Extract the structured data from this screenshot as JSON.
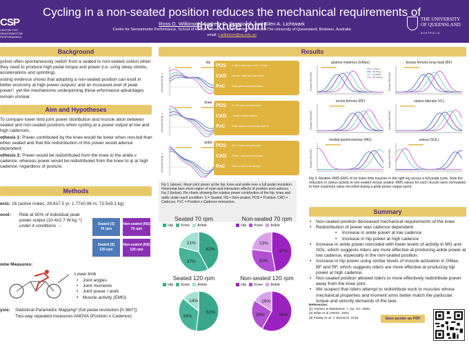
{
  "header": {
    "title": "Cycling in a non-seated position reduces the mechanical requirements of the knee joint",
    "author_main": "Ross D. Wilkinson",
    "authors_rest": ", Andrew G. Cresswell, and Glen A. Lichtwark",
    "affiliation": "Centre for Sensorimotor Performance, School of Human Movement and Nutrition Sciences, The University of Queensland, Brisbane, Australia",
    "email_label": "email: ",
    "email": "r.wilkinson@uq.edu.au",
    "logo_left": "CSP",
    "logo_left_sub": "CENTRE FOR SENSORIMOTOR PERFORMANCE",
    "logo_right_line1": "THE UNIVERSITY",
    "logo_right_line2": "OF QUEENSLAND",
    "logo_right_line3": "AUSTRALIA"
  },
  "background": {
    "heading": "Background",
    "p1": "yclists often spontaneously switch from a seated to non-seated osition when they need to produce high pedal torque and power (i.e. uring steep climbs, accelerations and sprinting).",
    "p2": "xisting evidence shows that adopting a non-seated position can esult in better economy at high power outputs¹ and an increased evel of peak power², yet the mechanisms underpinning these erformance advantages remain unclear."
  },
  "aims": {
    "heading": "Aim and Hypotheses",
    "p1": "To compare lower limb joint power distribution and muscle ation between seated and non-seated positions when cycling at a power output at low and high cadences.",
    "h1_label": "othesis 1:",
    "h1": " Power contributed by the knee would be lower when non-ted than when seated and that the redistribution of this power would adence dependent.",
    "h2_label": "othesis 2:",
    "h2": " Power would be redistributed from the knee to the ankle v cadence, whereas power would be redistributed from the knee to ip at high cadence, regardless of posture."
  },
  "methods": {
    "heading": "Methods",
    "subjects_label": "ects:",
    "subjects": "16 (active males; 28.6±7.5 yr; 1.77±0.06 m; 72.5±9.1 kg)",
    "protocol_label": "ocol:",
    "protocol": "Ride at 50% of individual peak power output (10.4±2.7 W.kg⁻¹) under 4 conditions →",
    "conditions": [
      "Seated (S)\n70 rpm",
      "Non-seated (NS)\n70 rpm",
      "Seated (S)\n120 rpm",
      "Non-seated (NS)\n120 rpm"
    ],
    "measures_label": "ome Measures:",
    "lower_limb": "Lower limb",
    "measures": [
      "Joint angles",
      "Joint moments",
      "Joint power / work",
      "Muscle activity (EMG)"
    ],
    "analysis_label": "ysis:",
    "analysis1": "Statistical Parametric Mapping³ (full pedal revolution [0-360°])",
    "analysis2": "Two-way repeated measures ANOVA (Position x Cadence)"
  },
  "results": {
    "heading": "Results",
    "joint_charts": [
      {
        "title": "hip",
        "legend": [
          "S 70rpm",
          "NS 70rpm",
          "S 120rpm",
          "NS 120rpm"
        ],
        "ylabel": "joint power (W.kg⁻¹)",
        "box": [
          {
            "label": "POS",
            "text": "S 70rpm peak power • NS > S at late"
          },
          {
            "label": "CAD",
            "text": "120 rpm ↑ peak and mean power"
          },
          {
            "label": "PxC",
            "text": "Phase shift in power production"
          }
        ]
      },
      {
        "title": "knee",
        "legend": [],
        "ylabel": "joint power (W.kg⁻¹)",
        "box": [
          {
            "label": "POS",
            "text": "S > NS mean and peak power"
          },
          {
            "label": "CAD",
            "text": "↑ power at higher cadence"
          },
          {
            "label": "PxC",
            "text": "Power reduced in NS at high cadence"
          }
        ]
      },
      {
        "title": "ankle",
        "legend": [],
        "ylabel": "joint power (W.kg⁻¹)",
        "box": [
          {
            "label": "POS",
            "text": "NS > S mean and peak power"
          },
          {
            "label": "CAD",
            "text": "70 rpm ↑ peak and mean power"
          },
          {
            "label": "PxC",
            "text": "Effect of CAD on NS stronger"
          }
        ]
      }
    ],
    "emg_charts": [
      {
        "title": "gluteus maximus (GMax)",
        "legend": [
          "S 70rpm",
          "NS 70rpm",
          "S 120rpm",
          "NS 120rpm"
        ]
      },
      {
        "title": "biceps femoris long head (BF)",
        "legend": []
      },
      {
        "title": "rectus femoris (RF)",
        "legend": []
      },
      {
        "title": "vastus lateralis (VL)",
        "legend": []
      },
      {
        "title": "medial gastrocnemius (MG)",
        "legend": []
      },
      {
        "title": "soleus (SOL)",
        "legend": []
      }
    ],
    "emg_ylabel": "Relative RMS EMG",
    "fig1_caption": "Fig 1 (above). Mean joint power at the hip, knee and ankle over a full pedal revolution. Horizontal bars show region of main and interaction effects of position and cadence.",
    "fig2_caption": "Fig 2 (below). Pie charts showing the relative power contribution of the hip, knee and ankle under each condition. S = Seated, NS = Non-seated, POS = Position, CAD = Cadence, PxC = Position x Cadence interaction.",
    "fig3_caption": "Fig 3. Relative RMS EMG of six lower limb muscles in the right leg across a full pedal cycle. Note the reduction in soleus activity in non-seated versus seated. RMS values for each muscle were normalised to their maximum value recorded during a peak power output sprint.",
    "pies": [
      {
        "title": "Seated 70 rpm",
        "hip": 42,
        "knee": 37,
        "ankle": 21
      },
      {
        "title": "Non-seated 70 rpm",
        "hip": 47,
        "knee": 30,
        "ankle": 23
      },
      {
        "title": "Seated 120 rpm",
        "hip": 52,
        "knee": 34,
        "ankle": 14
      },
      {
        "title": "Non-seated 120 rpm",
        "hip": 58,
        "knee": 26,
        "ankle": 16
      }
    ],
    "pie_legend": [
      "Hip",
      "Knee",
      "Ankle"
    ]
  },
  "colors": {
    "purple": "#4b2a83",
    "gold": "#e8c96a",
    "s70": "#2f6db5",
    "ns70": "#6a2fa3",
    "s120": "#5fc7b5",
    "ns120": "#c24fd1",
    "seated_pie": [
      "#3aa68c",
      "#46b49a",
      "#a6e0d2"
    ],
    "nonseated_pie": [
      "#9b22c0",
      "#b34fd2",
      "#d9a3ea"
    ]
  },
  "summary": {
    "heading": "Summary",
    "items": [
      {
        "text": "Non-seated position decreased mechanical requirements of the knee",
        "sub": false
      },
      {
        "text": "Redistribution of power was cadence dependent:",
        "sub": false
      },
      {
        "text": "Increase in ankle power at low cadence",
        "sub": true
      },
      {
        "text": "Increase in hip power at high cadence",
        "sub": true
      },
      {
        "text": "Increase in ankle power coincided with lower levels of activity in MG and SOL, which suggests riders are more effective at producing ankle power at low cadence, especially in the non-seated position.",
        "sub": false
      },
      {
        "text": "Increase in hip power using similar levels of muscle activation in GMax, BF and RF, which suggests riders are more effective at producing hip power at high cadence.",
        "sub": false
      },
      {
        "text": "Non-seated position allowed riders to more effectively redistribute power away from the knee joint.",
        "sub": false
      },
      {
        "text": "We suspect that riders attempt to redistribute work to muscles whose mechanical properties and moment arms better match the particular torque and velocity demands of the task.",
        "sub": false
      }
    ],
    "references_label": "References:",
    "references": [
      "[1] Hansen & Waldeland. J. Sp. Sci. 2008",
      "[2] Millet et al. MSSE. 2002",
      "[3] Pataky et al. J. Biomech. 2015"
    ],
    "save_label": "Save poster as PDF"
  }
}
